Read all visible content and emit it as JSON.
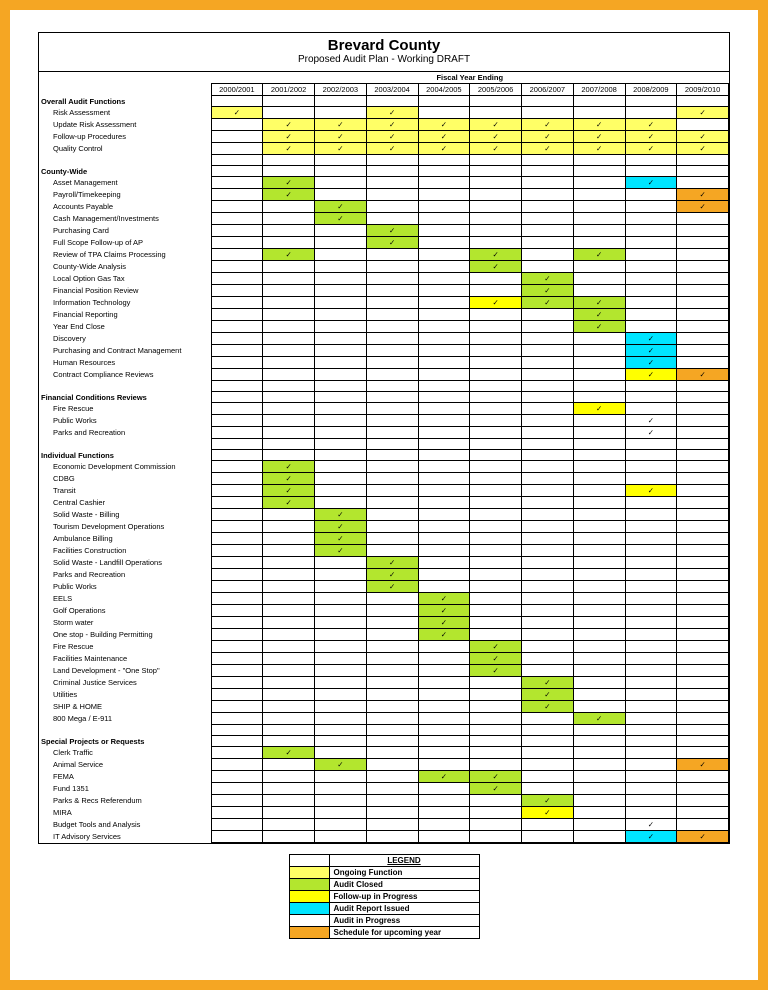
{
  "title": "Brevard County",
  "subtitle": "Proposed Audit Plan - Working DRAFT",
  "fiscal_header": "Fiscal Year Ending",
  "years": [
    "2000/2001",
    "2001/2002",
    "2002/2003",
    "2003/2004",
    "2004/2005",
    "2005/2006",
    "2006/2007",
    "2007/2008",
    "2008/2009",
    "2009/2010"
  ],
  "colors": {
    "ongoing": "#ffff66",
    "closed": "#b3e62e",
    "followup": "#ffff00",
    "issued": "#00e5ff",
    "inprogress": "#ffffff",
    "upcoming": "#f5a623",
    "border": "#000000",
    "frame": "#f5a623"
  },
  "check": "✓",
  "legend": {
    "title": "LEGEND",
    "items": [
      {
        "color": "#ffff66",
        "label": "Ongoing Function"
      },
      {
        "color": "#b3e62e",
        "label": "Audit Closed"
      },
      {
        "color": "#ffff00",
        "label": "Follow-up in Progress"
      },
      {
        "color": "#00e5ff",
        "label": "Audit Report Issued"
      },
      {
        "color": "#ffffff",
        "label": "Audit in Progress"
      },
      {
        "color": "#f5a623",
        "label": "Schedule for upcoming year"
      }
    ]
  },
  "rows": [
    {
      "label": "Overall Audit Functions",
      "section": true
    },
    {
      "label": "Risk Assessment",
      "indent": true,
      "cells": {
        "0": {
          "c": "ongoing",
          "m": true
        },
        "3": {
          "c": "ongoing",
          "m": true
        },
        "9": {
          "c": "ongoing",
          "m": true
        }
      }
    },
    {
      "label": "Update Risk Assessment",
      "indent": true,
      "cells": {
        "1": {
          "c": "ongoing",
          "m": true
        },
        "2": {
          "c": "ongoing",
          "m": true
        },
        "3": {
          "c": "ongoing",
          "m": true
        },
        "4": {
          "c": "ongoing",
          "m": true
        },
        "5": {
          "c": "ongoing",
          "m": true
        },
        "6": {
          "c": "ongoing",
          "m": true
        },
        "7": {
          "c": "ongoing",
          "m": true
        },
        "8": {
          "c": "ongoing",
          "m": true
        }
      }
    },
    {
      "label": "Follow-up Procedures",
      "indent": true,
      "cells": {
        "1": {
          "c": "ongoing",
          "m": true
        },
        "2": {
          "c": "ongoing",
          "m": true
        },
        "3": {
          "c": "ongoing",
          "m": true
        },
        "4": {
          "c": "ongoing",
          "m": true
        },
        "5": {
          "c": "ongoing",
          "m": true
        },
        "6": {
          "c": "ongoing",
          "m": true
        },
        "7": {
          "c": "ongoing",
          "m": true
        },
        "8": {
          "c": "ongoing",
          "m": true
        },
        "9": {
          "c": "ongoing",
          "m": true
        }
      }
    },
    {
      "label": "Quality Control",
      "indent": true,
      "cells": {
        "1": {
          "c": "ongoing",
          "m": true
        },
        "2": {
          "c": "ongoing",
          "m": true
        },
        "3": {
          "c": "ongoing",
          "m": true
        },
        "4": {
          "c": "ongoing",
          "m": true
        },
        "5": {
          "c": "ongoing",
          "m": true
        },
        "6": {
          "c": "ongoing",
          "m": true
        },
        "7": {
          "c": "ongoing",
          "m": true
        },
        "8": {
          "c": "ongoing",
          "m": true
        },
        "9": {
          "c": "ongoing",
          "m": true
        }
      }
    },
    {
      "blank": true
    },
    {
      "label": "County-Wide",
      "section": true
    },
    {
      "label": "Asset Management",
      "indent": true,
      "cells": {
        "1": {
          "c": "closed",
          "m": true
        },
        "8": {
          "c": "issued",
          "m": true
        }
      }
    },
    {
      "label": "Payroll/Timekeeping",
      "indent": true,
      "cells": {
        "1": {
          "c": "closed",
          "m": true
        },
        "9": {
          "c": "upcoming",
          "m": true
        }
      }
    },
    {
      "label": "Accounts Payable",
      "indent": true,
      "cells": {
        "2": {
          "c": "closed",
          "m": true
        },
        "9": {
          "c": "upcoming",
          "m": true
        }
      }
    },
    {
      "label": "Cash Management/Investments",
      "indent": true,
      "cells": {
        "2": {
          "c": "closed",
          "m": true
        }
      }
    },
    {
      "label": "Purchasing Card",
      "indent": true,
      "cells": {
        "3": {
          "c": "closed",
          "m": true
        }
      }
    },
    {
      "label": "Full Scope Follow-up of AP",
      "indent": true,
      "cells": {
        "3": {
          "c": "closed",
          "m": true
        }
      }
    },
    {
      "label": "Review of TPA Claims Processing",
      "indent": true,
      "cells": {
        "1": {
          "c": "closed",
          "m": true
        },
        "5": {
          "c": "closed",
          "m": true
        },
        "7": {
          "c": "closed",
          "m": true
        }
      }
    },
    {
      "label": "County-Wide Analysis",
      "indent": true,
      "cells": {
        "5": {
          "c": "closed",
          "m": true
        }
      }
    },
    {
      "label": "Local Option Gas Tax",
      "indent": true,
      "cells": {
        "6": {
          "c": "closed",
          "m": true
        }
      }
    },
    {
      "label": "Financial Position Review",
      "indent": true,
      "cells": {
        "6": {
          "c": "closed",
          "m": true
        }
      }
    },
    {
      "label": "Information Technology",
      "indent": true,
      "cells": {
        "5": {
          "c": "followup",
          "m": true
        },
        "6": {
          "c": "closed",
          "m": true
        },
        "7": {
          "c": "closed",
          "m": true
        }
      }
    },
    {
      "label": "Financial Reporting",
      "indent": true,
      "cells": {
        "7": {
          "c": "closed",
          "m": true
        }
      }
    },
    {
      "label": "Year End Close",
      "indent": true,
      "cells": {
        "7": {
          "c": "closed",
          "m": true
        }
      }
    },
    {
      "label": "Discovery",
      "indent": true,
      "cells": {
        "8": {
          "c": "issued",
          "m": true
        }
      }
    },
    {
      "label": "Purchasing and Contract Management",
      "indent": true,
      "cells": {
        "8": {
          "c": "issued",
          "m": true
        }
      }
    },
    {
      "label": "Human Resources",
      "indent": true,
      "cells": {
        "8": {
          "c": "issued",
          "m": true
        }
      }
    },
    {
      "label": "Contract Compliance Reviews",
      "indent": true,
      "cells": {
        "8": {
          "c": "followup",
          "m": true
        },
        "9": {
          "c": "upcoming",
          "m": true
        }
      }
    },
    {
      "blank": true
    },
    {
      "label": "Financial Conditions Reviews",
      "section": true
    },
    {
      "label": "Fire Rescue",
      "indent": true,
      "cells": {
        "7": {
          "c": "followup",
          "m": true
        }
      }
    },
    {
      "label": "Public Works",
      "indent": true,
      "cells": {
        "8": {
          "m": true
        }
      }
    },
    {
      "label": "Parks and Recreation",
      "indent": true,
      "cells": {
        "8": {
          "m": true
        }
      }
    },
    {
      "blank": true
    },
    {
      "label": "Individual Functions",
      "section": true
    },
    {
      "label": "Economic Development Commission",
      "indent": true,
      "cells": {
        "1": {
          "c": "closed",
          "m": true
        }
      }
    },
    {
      "label": "CDBG",
      "indent": true,
      "cells": {
        "1": {
          "c": "closed",
          "m": true
        }
      }
    },
    {
      "label": "Transit",
      "indent": true,
      "cells": {
        "1": {
          "c": "closed",
          "m": true
        },
        "8": {
          "c": "followup",
          "m": true
        }
      }
    },
    {
      "label": "Central Cashier",
      "indent": true,
      "cells": {
        "1": {
          "c": "closed",
          "m": true
        }
      }
    },
    {
      "label": "Solid Waste - Billing",
      "indent": true,
      "cells": {
        "2": {
          "c": "closed",
          "m": true
        }
      }
    },
    {
      "label": "Tourism Development Operations",
      "indent": true,
      "cells": {
        "2": {
          "c": "closed",
          "m": true
        }
      }
    },
    {
      "label": "Ambulance Billing",
      "indent": true,
      "cells": {
        "2": {
          "c": "closed",
          "m": true
        }
      }
    },
    {
      "label": "Facilities Construction",
      "indent": true,
      "cells": {
        "2": {
          "c": "closed",
          "m": true
        }
      }
    },
    {
      "label": "Solid Waste - Landfill Operations",
      "indent": true,
      "cells": {
        "3": {
          "c": "closed",
          "m": true
        }
      }
    },
    {
      "label": "Parks and Recreation",
      "indent": true,
      "cells": {
        "3": {
          "c": "closed",
          "m": true
        }
      }
    },
    {
      "label": "Public Works",
      "indent": true,
      "cells": {
        "3": {
          "c": "closed",
          "m": true
        }
      }
    },
    {
      "label": "EELS",
      "indent": true,
      "cells": {
        "4": {
          "c": "closed",
          "m": true
        }
      }
    },
    {
      "label": "Golf Operations",
      "indent": true,
      "cells": {
        "4": {
          "c": "closed",
          "m": true
        }
      }
    },
    {
      "label": "Storm water",
      "indent": true,
      "cells": {
        "4": {
          "c": "closed",
          "m": true
        }
      }
    },
    {
      "label": "One stop - Building Permitting",
      "indent": true,
      "cells": {
        "4": {
          "c": "closed",
          "m": true
        }
      }
    },
    {
      "label": "Fire Rescue",
      "indent": true,
      "cells": {
        "5": {
          "c": "closed",
          "m": true
        }
      }
    },
    {
      "label": "Facilities Maintenance",
      "indent": true,
      "cells": {
        "5": {
          "c": "closed",
          "m": true
        }
      }
    },
    {
      "label": "Land Development - \"One Stop\"",
      "indent": true,
      "cells": {
        "5": {
          "c": "closed",
          "m": true
        }
      }
    },
    {
      "label": "Criminal Justice Services",
      "indent": true,
      "cells": {
        "6": {
          "c": "closed",
          "m": true
        }
      }
    },
    {
      "label": "Utilities",
      "indent": true,
      "cells": {
        "6": {
          "c": "closed",
          "m": true
        }
      }
    },
    {
      "label": "SHIP & HOME",
      "indent": true,
      "cells": {
        "6": {
          "c": "closed",
          "m": true
        }
      }
    },
    {
      "label": "800 Mega / E-911",
      "indent": true,
      "cells": {
        "7": {
          "c": "closed",
          "m": true
        }
      }
    },
    {
      "blank": true
    },
    {
      "label": "Special Projects or Requests",
      "section": true
    },
    {
      "label": "Clerk Traffic",
      "indent": true,
      "cells": {
        "1": {
          "c": "closed",
          "m": true
        }
      }
    },
    {
      "label": "Animal Service",
      "indent": true,
      "cells": {
        "2": {
          "c": "closed",
          "m": true
        },
        "9": {
          "c": "upcoming",
          "m": true
        }
      }
    },
    {
      "label": "FEMA",
      "indent": true,
      "cells": {
        "4": {
          "c": "closed",
          "m": true
        },
        "5": {
          "c": "closed",
          "m": true
        }
      }
    },
    {
      "label": "Fund 1351",
      "indent": true,
      "cells": {
        "5": {
          "c": "closed",
          "m": true
        }
      }
    },
    {
      "label": "Parks & Recs Referendum",
      "indent": true,
      "cells": {
        "6": {
          "c": "closed",
          "m": true
        }
      }
    },
    {
      "label": "MIRA",
      "indent": true,
      "cells": {
        "6": {
          "c": "followup",
          "m": true
        }
      }
    },
    {
      "label": "Budget Tools and Analysis",
      "indent": true,
      "cells": {
        "8": {
          "m": true
        }
      }
    },
    {
      "label": "IT Advisory Services",
      "indent": true,
      "cells": {
        "8": {
          "c": "issued",
          "m": true
        },
        "9": {
          "c": "upcoming",
          "m": true
        }
      }
    }
  ]
}
